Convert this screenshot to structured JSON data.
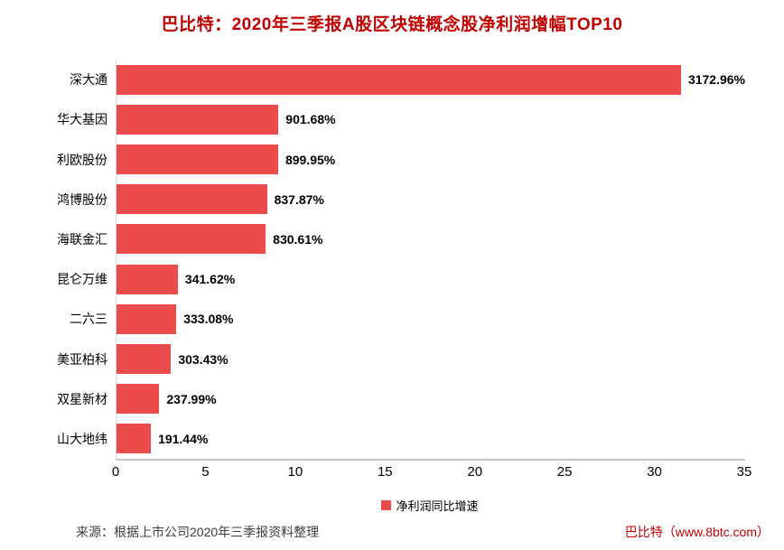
{
  "title": "巴比特：2020年三季报A股区块链概念股净利润增幅TOP10",
  "colors": {
    "bar": "#EC4B4B",
    "title_text": "#C00000",
    "axis_line": "#D9D9D9",
    "baseline": "#C6C6C6",
    "footer_source_text": "#3F3F3F",
    "footer_brand_text": "#C00000"
  },
  "chart_data": {
    "type": "bar",
    "orientation": "horizontal",
    "title": "巴比特：2020年三季报A股区块链概念股净利润增幅TOP10",
    "categories": [
      "深大通",
      "华大基因",
      "利欧股份",
      "鸿博股份",
      "海联金汇",
      "昆仑万维",
      "二六三",
      "美亚柏科",
      "双星新材",
      "山大地纬"
    ],
    "values_percent": [
      3172.96,
      901.68,
      899.95,
      837.87,
      830.61,
      341.62,
      333.08,
      303.43,
      237.99,
      191.44
    ],
    "value_labels": [
      "3172.96%",
      "901.68%",
      "899.95%",
      "837.87%",
      "830.61%",
      "341.62%",
      "333.08%",
      "303.43%",
      "237.99%",
      "191.44%"
    ],
    "x_ticks": [
      "0",
      "5",
      "10",
      "15",
      "20",
      "25",
      "30",
      "35"
    ],
    "xlim": [
      0,
      35
    ],
    "x_axis_unit_note": "1 axis unit = 100%",
    "grid": false,
    "legend": {
      "label": "净利润同比增速",
      "position": "bottom-center",
      "marker_color": "#EC4B4B"
    }
  },
  "footer": {
    "source": "来源：根据上市公司2020年三季报资料整理",
    "brand": "巴比特（www.8btc.com）"
  }
}
